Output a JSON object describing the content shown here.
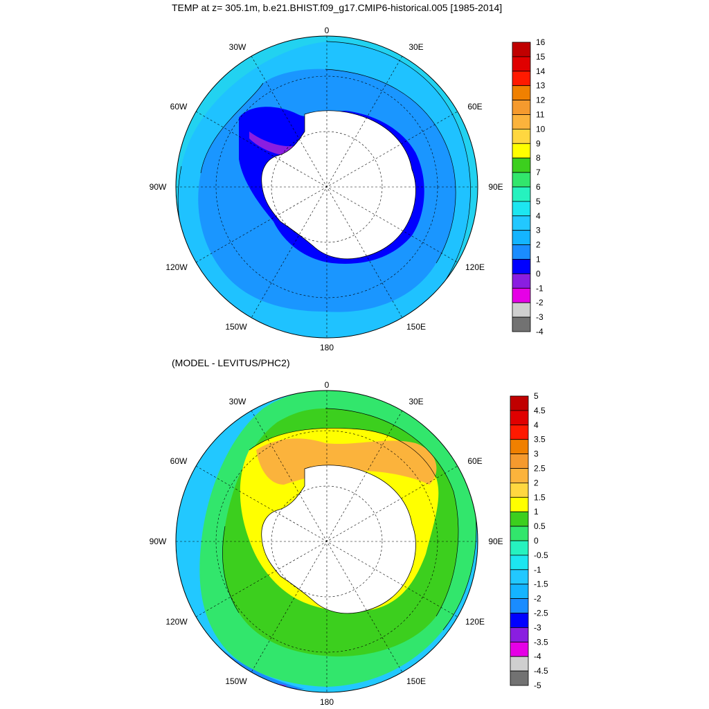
{
  "titles": {
    "top": "TEMP at z= 305.1m, b.e21.BHIST.f09_g17.CMIP6-historical.005 [1985-2014]",
    "bottom": "(MODEL - LEVITUS/PHC2)"
  },
  "lon_labels": [
    "0",
    "30E",
    "60E",
    "90E",
    "120E",
    "150E",
    "180",
    "150W",
    "120W",
    "90W",
    "60W",
    "30W"
  ],
  "colorbars": {
    "top": {
      "labels": [
        "16",
        "15",
        "14",
        "13",
        "12",
        "11",
        "10",
        "9",
        "8",
        "7",
        "6",
        "5",
        "4",
        "3",
        "2",
        "1",
        "0",
        "-1",
        "-2",
        "-3",
        "-4"
      ],
      "colors": [
        "#c00000",
        "#e00000",
        "#ff1a00",
        "#f08000",
        "#f59a2e",
        "#fbb33c",
        "#ffd740",
        "#ffff00",
        "#3ccf1e",
        "#32e66c",
        "#26f2bf",
        "#1de6f0",
        "#22c8ff",
        "#14b4ff",
        "#1a8cff",
        "#0000ff",
        "#8a1ee0",
        "#e600e6",
        "#cfcfcf",
        "#727272"
      ]
    },
    "bottom": {
      "labels": [
        "5",
        "4.5",
        "4",
        "3.5",
        "3",
        "2.5",
        "2",
        "1.5",
        "1",
        "0.5",
        "0",
        "-0.5",
        "-1",
        "-1.5",
        "-2",
        "-2.5",
        "-3",
        "-3.5",
        "-4",
        "-4.5",
        "-5"
      ],
      "colors": [
        "#c00000",
        "#e00000",
        "#ff1a00",
        "#f08000",
        "#f59a2e",
        "#fbb33c",
        "#ffd740",
        "#ffff00",
        "#3ccf1e",
        "#32e66c",
        "#26f2bf",
        "#1de6f0",
        "#22c8ff",
        "#14b4ff",
        "#1a8cff",
        "#0000ff",
        "#8a1ee0",
        "#e600e6",
        "#cfcfcf",
        "#727272"
      ]
    }
  },
  "map_colors": {
    "top": {
      "outer": "#22d2f0",
      "ring": "#1fc2ff",
      "inner": "#1a96ff",
      "shelf": "#0000ff",
      "shelf2": "#8a1ee0",
      "shelf3": "#e600e6"
    },
    "bottom": {
      "outer": "#22c8ff",
      "ring": "#32e66c",
      "inner": "#3ccf1e",
      "warm": "#ffff00",
      "warm2": "#fbb33c",
      "cold": "#1a8cff",
      "cold2": "#0000ff",
      "cold3": "#8a1ee0"
    },
    "land": "#ffffff"
  }
}
